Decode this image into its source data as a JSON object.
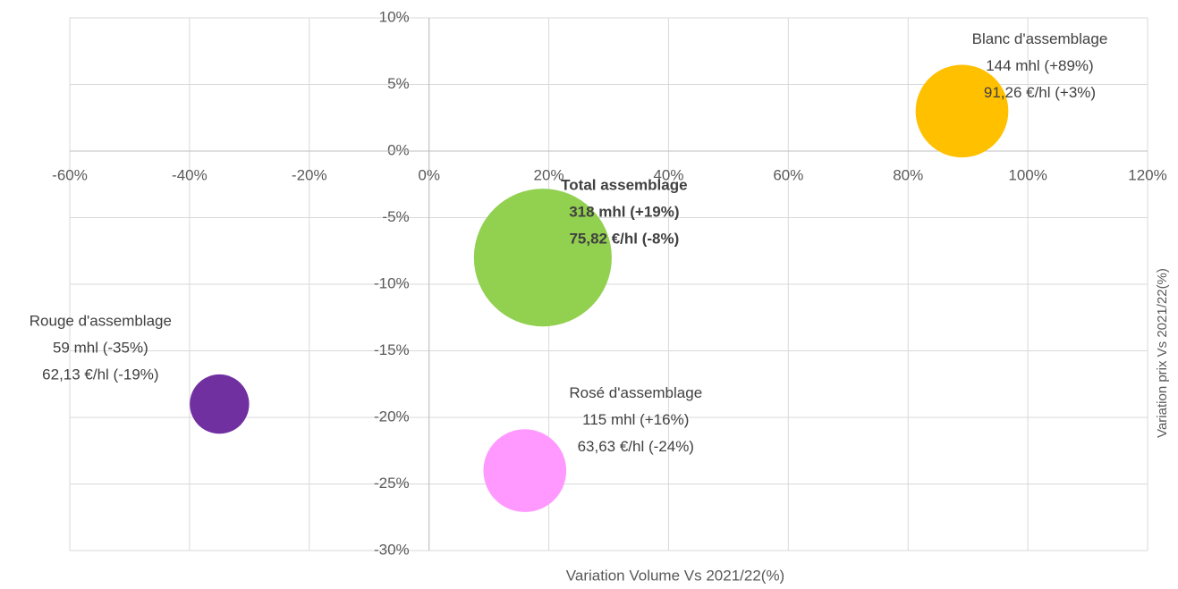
{
  "chart_data": {
    "type": "bubble",
    "x_label": "Variation Volume Vs 2021/22(%)",
    "y_label": "Variation prix Vs 2021/22(%)",
    "xlim": [
      -60,
      120
    ],
    "xticks": [
      {
        "value": -60,
        "label": "-60%"
      },
      {
        "value": -40,
        "label": "-40%"
      },
      {
        "value": -20,
        "label": "-20%"
      },
      {
        "value": 0,
        "label": "0%"
      },
      {
        "value": 20,
        "label": "20%"
      },
      {
        "value": 40,
        "label": "40%"
      },
      {
        "value": 60,
        "label": "60%"
      },
      {
        "value": 80,
        "label": "80%"
      },
      {
        "value": 100,
        "label": "100%"
      },
      {
        "value": 120,
        "label": "120%"
      }
    ],
    "ylim": [
      -30,
      10
    ],
    "yticks": [
      {
        "value": 10,
        "label": "10%"
      },
      {
        "value": 5,
        "label": "5%"
      },
      {
        "value": 0,
        "label": "0%"
      },
      {
        "value": -5,
        "label": "-5%"
      },
      {
        "value": -10,
        "label": "-10%"
      },
      {
        "value": -15,
        "label": "-15%"
      },
      {
        "value": -20,
        "label": "-20%"
      },
      {
        "value": -25,
        "label": "-25%"
      },
      {
        "value": -30,
        "label": "-30%"
      }
    ],
    "grid": true,
    "series": [
      {
        "name": "Blanc d'assemblage",
        "color": "#ffc000",
        "x": [
          89
        ],
        "values": [
          3
        ],
        "sizes": [
          144
        ],
        "labels": [
          "144 mhl (+89%)",
          "91,26 €/hl (+3%)"
        ]
      },
      {
        "name": "Total assemblage",
        "color": "#92d050",
        "x": [
          19
        ],
        "values": [
          -8
        ],
        "sizes": [
          318
        ],
        "labels": [
          "318 mhl (+19%)",
          "75,82 €/hl (-8%)"
        ],
        "bold": true
      },
      {
        "name": "Rouge d'assemblage",
        "color": "#7030a0",
        "x": [
          -35
        ],
        "values": [
          -19
        ],
        "sizes": [
          59
        ],
        "labels": [
          "59 mhl (-35%)",
          "62,13 €/hl (-19%)"
        ]
      },
      {
        "name": "Rosé d'assemblage",
        "color": "#ff99ff",
        "x": [
          16
        ],
        "values": [
          -24
        ],
        "sizes": [
          115
        ],
        "labels": [
          "115 mhl (+16%)",
          "63,63 €/hl (-24%)"
        ]
      }
    ]
  }
}
